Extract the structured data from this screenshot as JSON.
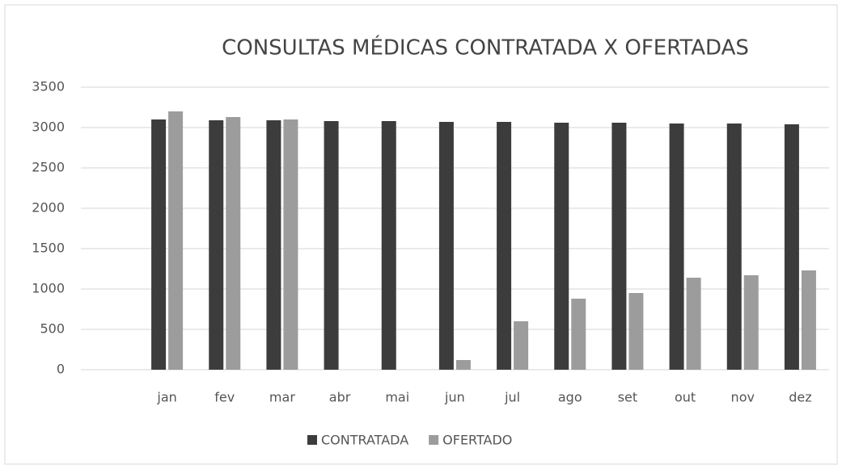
{
  "chart_data": {
    "type": "bar",
    "title": "CONSULTAS MÉDICAS CONTRATADA X OFERTADAS",
    "categories": [
      "jan",
      "fev",
      "mar",
      "abr",
      "mai",
      "jun",
      "jul",
      "ago",
      "set",
      "out",
      "nov",
      "dez"
    ],
    "series": [
      {
        "name": "CONTRATADA",
        "color": "#3c3c3c",
        "values": [
          3100,
          3090,
          3090,
          3080,
          3080,
          3070,
          3070,
          3060,
          3060,
          3050,
          3050,
          3040
        ]
      },
      {
        "name": "OFERTADO",
        "color": "#9c9c9c",
        "values": [
          3200,
          3130,
          3100,
          null,
          null,
          120,
          600,
          880,
          950,
          1140,
          1170,
          1230
        ]
      }
    ],
    "ylim": [
      0,
      3500
    ],
    "yticks": [
      0,
      500,
      1000,
      1500,
      2000,
      2500,
      3000,
      3500
    ],
    "grid": true,
    "legend": "bottom"
  }
}
